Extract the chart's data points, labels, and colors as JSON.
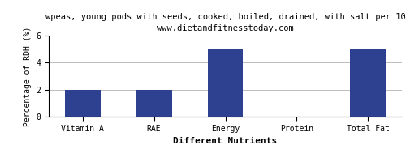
{
  "title_line1": "wpeas, young pods with seeds, cooked, boiled, drained, with salt per 10",
  "title_line2": "www.dietandfitnesstoday.com",
  "categories": [
    "Vitamin A",
    "RAE",
    "Energy",
    "Protein",
    "Total Fat"
  ],
  "values": [
    2.0,
    2.0,
    5.0,
    0.0,
    5.0
  ],
  "bar_color": "#2e4090",
  "ylabel": "Percentage of RDH (%)",
  "xlabel": "Different Nutrients",
  "ylim": [
    0,
    6
  ],
  "yticks": [
    0,
    2,
    4,
    6
  ],
  "background_color": "#ffffff",
  "grid_color": "#bbbbbb",
  "title_fontsize": 7.5,
  "subtitle_fontsize": 7.5,
  "tick_fontsize": 7,
  "ylabel_fontsize": 7,
  "xlabel_fontsize": 8
}
